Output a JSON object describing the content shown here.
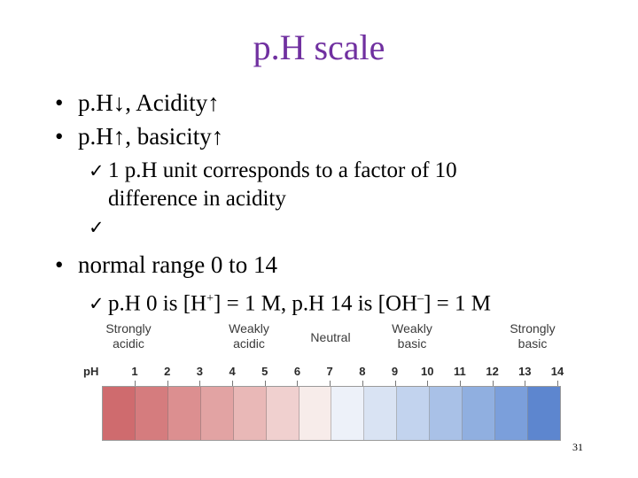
{
  "slide": {
    "title": "p.H scale",
    "bullets": [
      {
        "marker": "•",
        "text": "p.H↓, Acidity↑"
      },
      {
        "marker": "•",
        "text": "p.H↑, basicity↑"
      }
    ],
    "sub1": {
      "check": "✓",
      "line1": "1 p.H unit corresponds to a factor of 10",
      "line2": "difference in acidity"
    },
    "sub2": {
      "check": "✓"
    },
    "bullet3": {
      "marker": "•",
      "text": "normal range 0 to 14"
    },
    "sub3": {
      "check": "✓",
      "text_a": "p.H 0 is [H",
      "sup_a": "+",
      "text_b": "] = 1 M, p.H 14 is [OH",
      "sup_b": "–",
      "text_c": "] = 1 M"
    },
    "page_number": "31"
  },
  "scale": {
    "labels": {
      "strongly_acidic": [
        "Strongly",
        "acidic"
      ],
      "weakly_acidic": [
        "Weakly",
        "acidic"
      ],
      "neutral": "Neutral",
      "weakly_basic": [
        "Weakly",
        "basic"
      ],
      "strongly_basic": [
        "Strongly",
        "basic"
      ]
    },
    "ph_label": "pH",
    "numbers": [
      "1",
      "2",
      "3",
      "4",
      "5",
      "6",
      "7",
      "8",
      "9",
      "10",
      "11",
      "12",
      "13",
      "14"
    ],
    "colors": [
      "#cf6b6e",
      "#d57c7e",
      "#dc8f90",
      "#e2a3a3",
      "#e9b8b7",
      "#f0d0cf",
      "#f7ecea",
      "#edf1f9",
      "#d9e3f3",
      "#c2d3ee",
      "#a9c1e7",
      "#90afe0",
      "#7b9fdb",
      "#5d86cf"
    ]
  }
}
